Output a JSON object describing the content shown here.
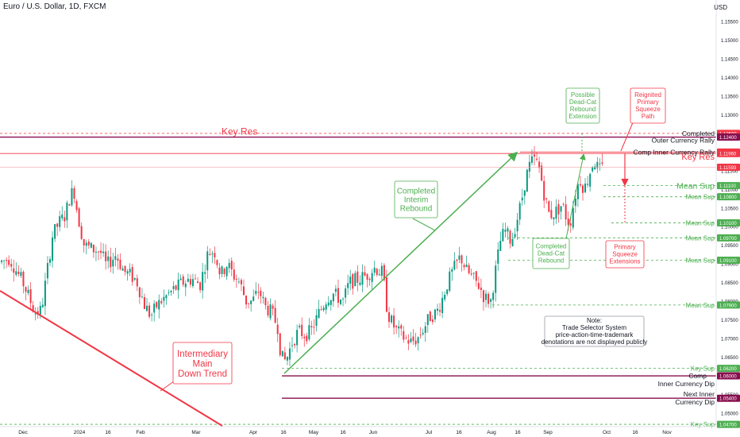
{
  "header": {
    "symbol": "Euro / U.S. Dollar, 1D, FXCM",
    "currency": "USD"
  },
  "colors": {
    "up": "#089981",
    "down": "#f23645",
    "green": "#4caf50",
    "red": "#f23645",
    "maroon": "#880e4f",
    "purple": "#9c27b0",
    "axis_text": "#131722"
  },
  "chart_data": {
    "type": "candlestick",
    "title": "Euro / U.S. Dollar, 1D, FXCM",
    "y_ticks": [
      "1.15500",
      "1.15000",
      "1.14500",
      "1.14000",
      "1.13500",
      "1.13000",
      "1.12500",
      "1.12000",
      "1.11500",
      "1.11000",
      "1.10500",
      "1.10000",
      "1.09500",
      "1.09000",
      "1.08500",
      "1.08000",
      "1.07500",
      "1.07000",
      "1.06500",
      "1.06000",
      "1.05500",
      "1.05000"
    ],
    "x_ticks": [
      "Dec",
      "2024",
      "16",
      "Feb",
      "Mar",
      "Apr",
      "16",
      "May",
      "16",
      "Jun",
      "Jul",
      "16",
      "Aug",
      "16",
      "Sep",
      "Oct",
      "16",
      "Nov"
    ],
    "price_labels": [
      {
        "value": "1.12500",
        "kind": "red"
      },
      {
        "value": "1.12400",
        "kind": "maroon"
      },
      {
        "value": "1.12000",
        "kind": "red"
      },
      {
        "value": "1.11960",
        "kind": "red"
      },
      {
        "value": "1.11593",
        "kind": "red"
      },
      {
        "value": "1.11100",
        "kind": "green"
      },
      {
        "value": "1.10800",
        "kind": "green"
      },
      {
        "value": "1.10100",
        "kind": "green"
      },
      {
        "value": "1.09700",
        "kind": "green"
      },
      {
        "value": "1.09100",
        "kind": "green"
      },
      {
        "value": "1.07900",
        "kind": "green"
      },
      {
        "value": "1.06200",
        "kind": "green"
      },
      {
        "value": "1.06000",
        "kind": "maroon"
      },
      {
        "value": "1.05400",
        "kind": "maroon"
      },
      {
        "value": "1.04700",
        "kind": "green"
      }
    ],
    "levels": [
      {
        "value": 1.125,
        "color": "red",
        "dash": true,
        "label": "Completed",
        "style": "small"
      },
      {
        "value": 1.124,
        "color": "maroon",
        "dash": false,
        "label": "Key Res",
        "style": "big-red"
      },
      {
        "value": 1.124,
        "color": "maroon",
        "dash": false,
        "label": "Outer Currency Rally",
        "style": "small"
      },
      {
        "value": 1.12,
        "color": "red",
        "dash": false,
        "label": "Comp Inner Currency Rally",
        "style": "small"
      },
      {
        "value": 1.1196,
        "color": "red",
        "dash": false,
        "label": "Key Res",
        "style": "mid-red"
      },
      {
        "value": 1.11593,
        "color": "red",
        "dash": false,
        "label": "",
        "style": "none"
      },
      {
        "value": 1.111,
        "color": "green",
        "dash": true,
        "label": "Mean Sup",
        "style": "big-green"
      },
      {
        "value": 1.108,
        "color": "green",
        "dash": true,
        "label": "Mean Sup",
        "style": "small-green"
      },
      {
        "value": 1.101,
        "color": "green",
        "dash": true,
        "label": "Mean Sup",
        "style": "small-green"
      },
      {
        "value": 1.097,
        "color": "green",
        "dash": true,
        "label": "Mean Sup",
        "style": "small-green"
      },
      {
        "value": 1.091,
        "color": "green",
        "dash": true,
        "label": "Mean Sup",
        "style": "small-green"
      },
      {
        "value": 1.079,
        "color": "green",
        "dash": true,
        "label": "Mean Sup",
        "style": "small-green"
      },
      {
        "value": 1.062,
        "color": "green",
        "dash": true,
        "label": "Key Sup",
        "style": "small-green"
      },
      {
        "value": 1.06,
        "color": "maroon",
        "dash": false,
        "label": "Comp",
        "style": "small"
      },
      {
        "value": 1.06,
        "color": "maroon",
        "dash": false,
        "label": "Inner Currency Dip",
        "style": "small"
      },
      {
        "value": 1.054,
        "color": "maroon",
        "dash": false,
        "label": "Next Inner",
        "style": "small"
      },
      {
        "value": 1.054,
        "color": "maroon",
        "dash": false,
        "label": "Currency Dip",
        "style": "small"
      },
      {
        "value": 1.047,
        "color": "green",
        "dash": true,
        "label": "Key Sup",
        "style": "small-green"
      }
    ],
    "callouts": [
      {
        "lines": [
          "Intermediary",
          "Main",
          "Down Trend"
        ],
        "color": "red"
      },
      {
        "lines": [
          "Completed",
          "Interim",
          "Rebound"
        ],
        "color": "green"
      },
      {
        "lines": [
          "Completed",
          "Dead-Cat",
          "Rebound"
        ],
        "color": "green"
      },
      {
        "lines": [
          "Possible",
          "Dead-Cat",
          "Rebound",
          "Extension"
        ],
        "color": "green"
      },
      {
        "lines": [
          "Reignited",
          "Primary",
          "Squeeze",
          "Path"
        ],
        "color": "red"
      },
      {
        "lines": [
          "Primary",
          "Squeeze",
          "Extensions"
        ],
        "color": "red"
      },
      {
        "lines": [
          "Note:",
          "Trade Selector System",
          "price-action-time-trademark",
          "denotations are not displayed publicly"
        ],
        "color": "gray"
      }
    ],
    "price_path": [
      [
        0,
        1.0905
      ],
      [
        12,
        1.0915
      ],
      [
        30,
        1.0845
      ],
      [
        44,
        1.077
      ],
      [
        52,
        1.0775
      ],
      [
        58,
        1.086
      ],
      [
        66,
        1.0975
      ],
      [
        74,
        1.101
      ],
      [
        82,
        1.103
      ],
      [
        88,
        1.108
      ],
      [
        93,
        1.11
      ],
      [
        98,
        1.103
      ],
      [
        106,
        1.095
      ],
      [
        116,
        1.094
      ],
      [
        126,
        1.0935
      ],
      [
        134,
        1.0895
      ],
      [
        146,
        1.0925
      ],
      [
        156,
        1.088
      ],
      [
        164,
        1.087
      ],
      [
        172,
        1.0855
      ],
      [
        182,
        1.079
      ],
      [
        190,
        1.076
      ],
      [
        198,
        1.079
      ],
      [
        208,
        1.081
      ],
      [
        218,
        1.083
      ],
      [
        230,
        1.085
      ],
      [
        242,
        1.086
      ],
      [
        252,
        1.0845
      ],
      [
        262,
        1.093
      ],
      [
        270,
        1.0935
      ],
      [
        278,
        1.087
      ],
      [
        286,
        1.09
      ],
      [
        294,
        1.087
      ],
      [
        302,
        1.085
      ],
      [
        310,
        1.08
      ],
      [
        318,
        1.08
      ],
      [
        326,
        1.083
      ],
      [
        334,
        1.0785
      ],
      [
        342,
        1.077
      ],
      [
        350,
        1.073
      ],
      [
        354,
        1.065
      ],
      [
        360,
        1.064
      ],
      [
        368,
        1.069
      ],
      [
        376,
        1.072
      ],
      [
        384,
        1.071
      ],
      [
        392,
        1.072
      ],
      [
        402,
        1.077
      ],
      [
        412,
        1.081
      ],
      [
        420,
        1.082
      ],
      [
        432,
        1.08
      ],
      [
        440,
        1.085
      ],
      [
        452,
        1.086
      ],
      [
        462,
        1.087
      ],
      [
        472,
        1.089
      ],
      [
        482,
        1.0875
      ],
      [
        488,
        1.077
      ],
      [
        494,
        1.074
      ],
      [
        500,
        1.072
      ],
      [
        510,
        1.07
      ],
      [
        518,
        1.069
      ],
      [
        526,
        1.07
      ],
      [
        534,
        1.073
      ],
      [
        542,
        1.076
      ],
      [
        550,
        1.077
      ],
      [
        556,
        1.08
      ],
      [
        562,
        1.084
      ],
      [
        570,
        1.088
      ],
      [
        580,
        1.092
      ],
      [
        588,
        1.088
      ],
      [
        596,
        1.086
      ],
      [
        604,
        1.084
      ],
      [
        610,
        1.081
      ],
      [
        618,
        1.08
      ],
      [
        624,
        1.088
      ],
      [
        630,
        1.096
      ],
      [
        636,
        1.099
      ],
      [
        644,
        1.096
      ],
      [
        650,
        1.101
      ],
      [
        656,
        1.106
      ],
      [
        662,
        1.113
      ],
      [
        668,
        1.117
      ],
      [
        674,
        1.118
      ],
      [
        680,
        1.115
      ],
      [
        686,
        1.108
      ],
      [
        692,
        1.103
      ],
      [
        700,
        1.104
      ],
      [
        708,
        1.106
      ],
      [
        714,
        1.102
      ],
      [
        718,
        1.101
      ],
      [
        724,
        1.108
      ],
      [
        730,
        1.113
      ],
      [
        736,
        1.11
      ],
      [
        742,
        1.114
      ],
      [
        748,
        1.118
      ],
      [
        752,
        1.116
      ],
      [
        756,
        1.115
      ],
      [
        760,
        1.1159
      ]
    ]
  }
}
